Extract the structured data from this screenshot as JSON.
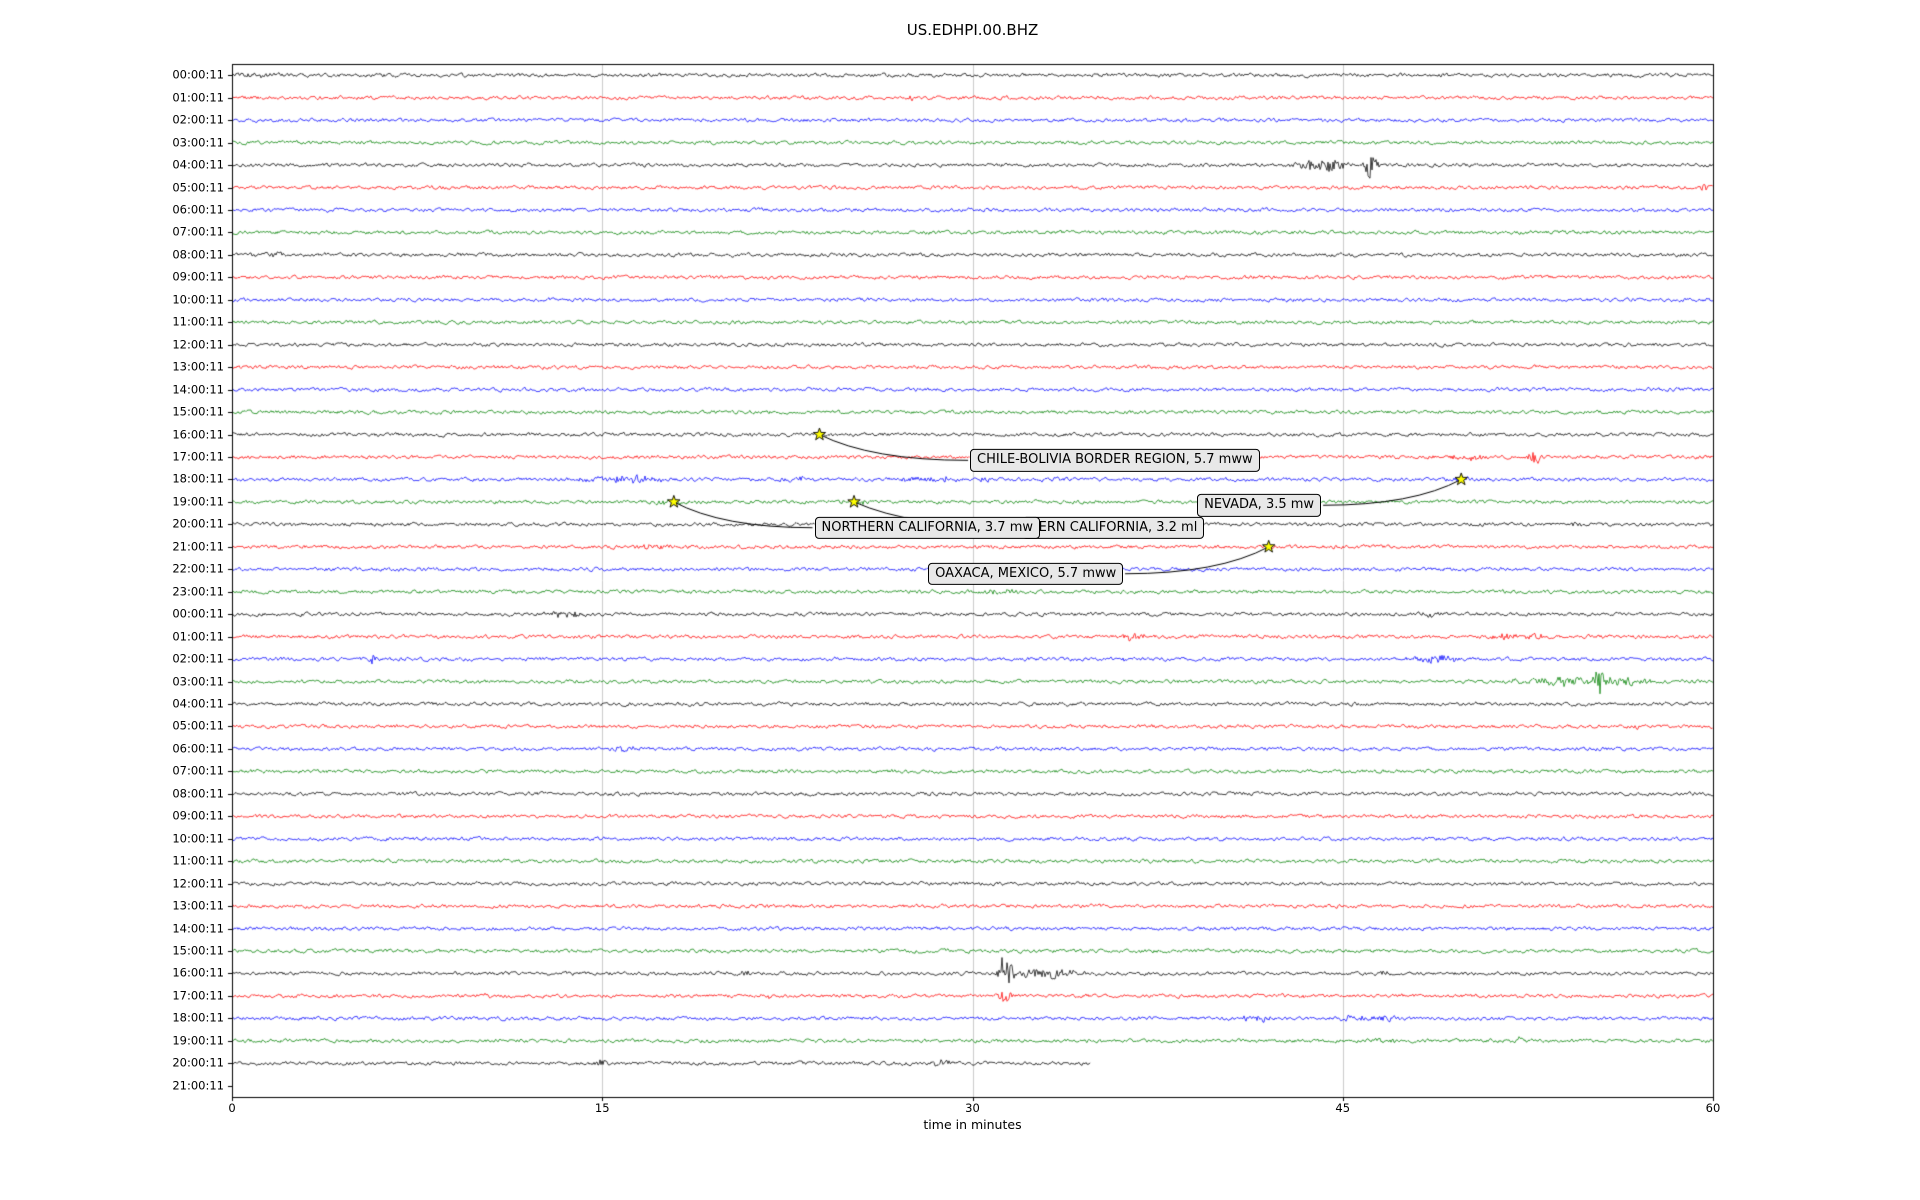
{
  "chart_data": {
    "type": "line",
    "subtype": "seismogram-dayplot",
    "title": "US.EDHPI.00.BHZ",
    "xlabel": "time in minutes",
    "x_range_minutes": [
      0,
      60
    ],
    "x_ticks": [
      0,
      15,
      30,
      45,
      60
    ],
    "grid_minutes": [
      15,
      30,
      45
    ],
    "time_per_row": "1 hour",
    "color_cycle": [
      "#000000",
      "#ff0000",
      "#0000ff",
      "#008000"
    ],
    "style": {
      "background": "#ffffff",
      "grid_color": "#cccccc",
      "frame_color": "#000000",
      "marker": {
        "shape": "star",
        "fill": "#ffff00",
        "edge": "#000000"
      },
      "label_box": {
        "fill": "#e8e8e8",
        "edge": "#000000"
      }
    },
    "rows": [
      {
        "label": "00:00:11",
        "events": [
          [
            0.7,
            1.5,
            0.8
          ]
        ]
      },
      {
        "label": "01:00:11",
        "events": [
          [
            27.5,
            2.5,
            0.2
          ]
        ]
      },
      {
        "label": "02:00:11",
        "events": []
      },
      {
        "label": "03:00:11",
        "events": []
      },
      {
        "label": "04:00:11",
        "events": [
          [
            43.7,
            4,
            0.5
          ],
          [
            44.6,
            5,
            0.35
          ],
          [
            46.1,
            14,
            0.18
          ]
        ]
      },
      {
        "label": "05:00:11",
        "events": [
          [
            59.6,
            2.5,
            0.15
          ]
        ]
      },
      {
        "label": "06:00:11",
        "events": []
      },
      {
        "label": "07:00:11",
        "events": []
      },
      {
        "label": "08:00:11",
        "events": [
          [
            1.5,
            1.5,
            0.6
          ]
        ]
      },
      {
        "label": "09:00:11",
        "events": []
      },
      {
        "label": "10:00:11",
        "events": []
      },
      {
        "label": "11:00:11",
        "events": []
      },
      {
        "label": "12:00:11",
        "events": []
      },
      {
        "label": "13:00:11",
        "events": []
      },
      {
        "label": "14:00:11",
        "events": []
      },
      {
        "label": "15:00:11",
        "events": []
      },
      {
        "label": "16:00:11",
        "events": []
      },
      {
        "label": "17:00:11",
        "events": [
          [
            50.0,
            2,
            0.8
          ],
          [
            52.8,
            10,
            0.15
          ]
        ]
      },
      {
        "label": "18:00:11",
        "events": [
          [
            15.3,
            2.2,
            0.9
          ],
          [
            16.6,
            2.2,
            0.7
          ],
          [
            23.0,
            1.8,
            0.5
          ],
          [
            27.6,
            2.2,
            0.6
          ],
          [
            28.9,
            2.2,
            0.5
          ],
          [
            30.3,
            1.8,
            0.5
          ],
          [
            33.2,
            1.8,
            0.4
          ],
          [
            49.8,
            2.0,
            0.4
          ]
        ]
      },
      {
        "label": "19:00:11",
        "events": [
          [
            17.9,
            2.6,
            0.5
          ],
          [
            25.2,
            1.8,
            0.4
          ]
        ]
      },
      {
        "label": "20:00:11",
        "events": [
          [
            54.5,
            2,
            0.15
          ]
        ]
      },
      {
        "label": "21:00:11",
        "events": [
          [
            16.9,
            2.6,
            0.35
          ],
          [
            17.6,
            2.2,
            0.3
          ]
        ]
      },
      {
        "label": "22:00:11",
        "events": []
      },
      {
        "label": "23:00:11",
        "events": [
          [
            30.9,
            2.2,
            0.6
          ]
        ]
      },
      {
        "label": "00:00:11",
        "events": [
          [
            13.1,
            1.8,
            0.4
          ],
          [
            13.9,
            2.0,
            0.3
          ],
          [
            48.6,
            1.8,
            0.5
          ]
        ]
      },
      {
        "label": "01:00:11",
        "events": [
          [
            36.6,
            3.0,
            0.35
          ],
          [
            51.6,
            2.6,
            0.35
          ],
          [
            52.7,
            2.4,
            0.3
          ]
        ]
      },
      {
        "label": "02:00:11",
        "events": [
          [
            5.7,
            9,
            0.1
          ],
          [
            36.4,
            2.2,
            0.5
          ],
          [
            48.4,
            2.6,
            0.5
          ],
          [
            49.4,
            2.2,
            0.4
          ]
        ]
      },
      {
        "label": "03:00:11",
        "events": [
          [
            52.9,
            2.6,
            0.8
          ],
          [
            54.3,
            3.5,
            0.5
          ],
          [
            55.4,
            12,
            0.16
          ],
          [
            56.2,
            3.5,
            0.8
          ]
        ]
      },
      {
        "label": "04:00:11",
        "events": []
      },
      {
        "label": "05:00:11",
        "events": [
          [
            56.9,
            2.6,
            0.12
          ]
        ]
      },
      {
        "label": "06:00:11",
        "events": [
          [
            15.9,
            2.2,
            0.3
          ]
        ]
      },
      {
        "label": "07:00:11",
        "events": []
      },
      {
        "label": "08:00:11",
        "events": []
      },
      {
        "label": "09:00:11",
        "events": []
      },
      {
        "label": "10:00:11",
        "events": []
      },
      {
        "label": "11:00:11",
        "events": []
      },
      {
        "label": "12:00:11",
        "events": []
      },
      {
        "label": "13:00:11",
        "events": []
      },
      {
        "label": "14:00:11",
        "events": []
      },
      {
        "label": "15:00:11",
        "events": []
      },
      {
        "label": "16:00:11",
        "events": [
          [
            20.8,
            2.6,
            0.2
          ],
          [
            31.3,
            18,
            0.22
          ],
          [
            32.4,
            4,
            0.35
          ],
          [
            33.3,
            3.6,
            0.4
          ],
          [
            34.0,
            3.0,
            0.3
          ],
          [
            46.6,
            2.6,
            0.2
          ]
        ]
      },
      {
        "label": "17:00:11",
        "events": [
          [
            10.3,
            2.2,
            0.2
          ],
          [
            21.6,
            2.2,
            0.2
          ],
          [
            31.3,
            8,
            0.16
          ],
          [
            43.6,
            2.2,
            0.2
          ]
        ]
      },
      {
        "label": "18:00:11",
        "events": [
          [
            41.4,
            2.2,
            0.5
          ],
          [
            45.5,
            2.2,
            0.5
          ],
          [
            46.6,
            2.0,
            0.4
          ]
        ]
      },
      {
        "label": "19:00:11",
        "events": [
          [
            46.9,
            2.0,
            0.4
          ],
          [
            52.2,
            2.4,
            0.3
          ]
        ]
      },
      {
        "label": "20:00:11",
        "end_minute": 34.8,
        "events": [
          [
            15.0,
            3.5,
            0.2
          ],
          [
            28.7,
            2.6,
            0.3
          ]
        ]
      },
      {
        "label": "21:00:11",
        "trace": false,
        "events": []
      }
    ],
    "annotations": [
      {
        "text": "CHILE-BOLIVIA BORDER REGION, 5.7 mww",
        "star_minute": 23.8,
        "star_row": 16,
        "label_minute": 29.9,
        "label_row": 17.15,
        "anchor": "left"
      },
      {
        "text": "NEVADA, 3.5 mw",
        "star_minute": 49.8,
        "star_row": 18,
        "label_minute": 39.1,
        "label_row": 19.15,
        "anchor": "right"
      },
      {
        "text": "HERN CALIFORNIA, 3.2 ml",
        "star_minute": 25.2,
        "star_row": 19,
        "label_minute": 32.0,
        "label_row": 20.15,
        "anchor": "left"
      },
      {
        "text": "NORTHERN CALIFORNIA, 3.7 mw",
        "star_minute": 17.9,
        "star_row": 19,
        "label_minute": 23.6,
        "label_row": 20.15,
        "anchor": "left"
      },
      {
        "text": "OAXACA, MEXICO, 5.7 mww",
        "star_minute": 42.0,
        "star_row": 21,
        "label_minute": 28.2,
        "label_row": 22.2,
        "anchor": "right"
      }
    ]
  }
}
